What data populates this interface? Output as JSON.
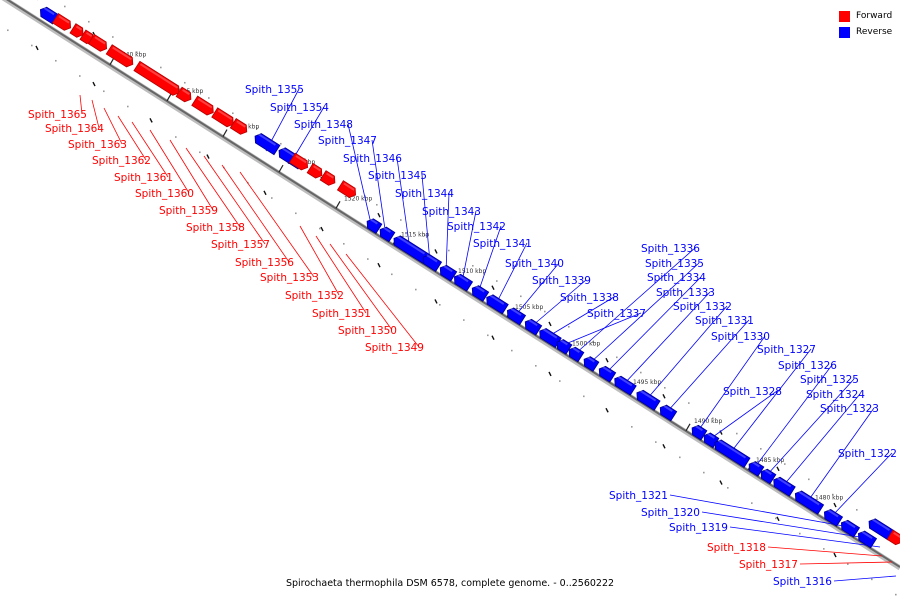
{
  "caption": "Spirochaeta thermophila DSM 6578, complete genome. - 0..2560222",
  "legend": [
    {
      "label": "Forward",
      "color": "#ff0000"
    },
    {
      "label": "Reverse",
      "color": "#0000ff"
    }
  ],
  "ticks": [
    "1540 kbp",
    "1535 kbp",
    "1530 kbp",
    "1525 kbp",
    "1520 kbp",
    "1515 kbp",
    "1510 kbp",
    "1505 kbp",
    "1500 kbp",
    "1495 kbp",
    "1490 kbp",
    "1485 kbp",
    "1480 kbp"
  ],
  "genes": [
    {
      "label": "Spith_1365",
      "strand": "Forward"
    },
    {
      "label": "Spith_1364",
      "strand": "Forward"
    },
    {
      "label": "Spith_1363",
      "strand": "Forward"
    },
    {
      "label": "Spith_1362",
      "strand": "Forward"
    },
    {
      "label": "Spith_1361",
      "strand": "Forward"
    },
    {
      "label": "Spith_1360",
      "strand": "Forward"
    },
    {
      "label": "Spith_1359",
      "strand": "Forward"
    },
    {
      "label": "Spith_1358",
      "strand": "Forward"
    },
    {
      "label": "Spith_1357",
      "strand": "Forward"
    },
    {
      "label": "Spith_1356",
      "strand": "Forward"
    },
    {
      "label": "Spith_1353",
      "strand": "Forward"
    },
    {
      "label": "Spith_1352",
      "strand": "Forward"
    },
    {
      "label": "Spith_1351",
      "strand": "Forward"
    },
    {
      "label": "Spith_1350",
      "strand": "Forward"
    },
    {
      "label": "Spith_1349",
      "strand": "Forward"
    },
    {
      "label": "Spith_1355",
      "strand": "Reverse"
    },
    {
      "label": "Spith_1354",
      "strand": "Reverse"
    },
    {
      "label": "Spith_1348",
      "strand": "Reverse"
    },
    {
      "label": "Spith_1347",
      "strand": "Reverse"
    },
    {
      "label": "Spith_1346",
      "strand": "Reverse"
    },
    {
      "label": "Spith_1345",
      "strand": "Reverse"
    },
    {
      "label": "Spith_1344",
      "strand": "Reverse"
    },
    {
      "label": "Spith_1343",
      "strand": "Reverse"
    },
    {
      "label": "Spith_1342",
      "strand": "Reverse"
    },
    {
      "label": "Spith_1341",
      "strand": "Reverse"
    },
    {
      "label": "Spith_1340",
      "strand": "Reverse"
    },
    {
      "label": "Spith_1339",
      "strand": "Reverse"
    },
    {
      "label": "Spith_1338",
      "strand": "Reverse"
    },
    {
      "label": "Spith_1337",
      "strand": "Reverse"
    },
    {
      "label": "Spith_1336",
      "strand": "Reverse"
    },
    {
      "label": "Spith_1335",
      "strand": "Reverse"
    },
    {
      "label": "Spith_1334",
      "strand": "Reverse"
    },
    {
      "label": "Spith_1333",
      "strand": "Reverse"
    },
    {
      "label": "Spith_1332",
      "strand": "Reverse"
    },
    {
      "label": "Spith_1331",
      "strand": "Reverse"
    },
    {
      "label": "Spith_1330",
      "strand": "Reverse"
    },
    {
      "label": "Spith_1328",
      "strand": "Reverse"
    },
    {
      "label": "Spith_1327",
      "strand": "Reverse"
    },
    {
      "label": "Spith_1326",
      "strand": "Reverse"
    },
    {
      "label": "Spith_1325",
      "strand": "Reverse"
    },
    {
      "label": "Spith_1324",
      "strand": "Reverse"
    },
    {
      "label": "Spith_1323",
      "strand": "Reverse"
    },
    {
      "label": "Spith_1322",
      "strand": "Reverse"
    },
    {
      "label": "Spith_1321",
      "strand": "Reverse"
    },
    {
      "label": "Spith_1320",
      "strand": "Reverse"
    },
    {
      "label": "Spith_1319",
      "strand": "Reverse"
    },
    {
      "label": "Spith_1318",
      "strand": "Forward"
    },
    {
      "label": "Spith_1317",
      "strand": "Forward"
    },
    {
      "label": "Spith_1316",
      "strand": "Reverse"
    }
  ]
}
